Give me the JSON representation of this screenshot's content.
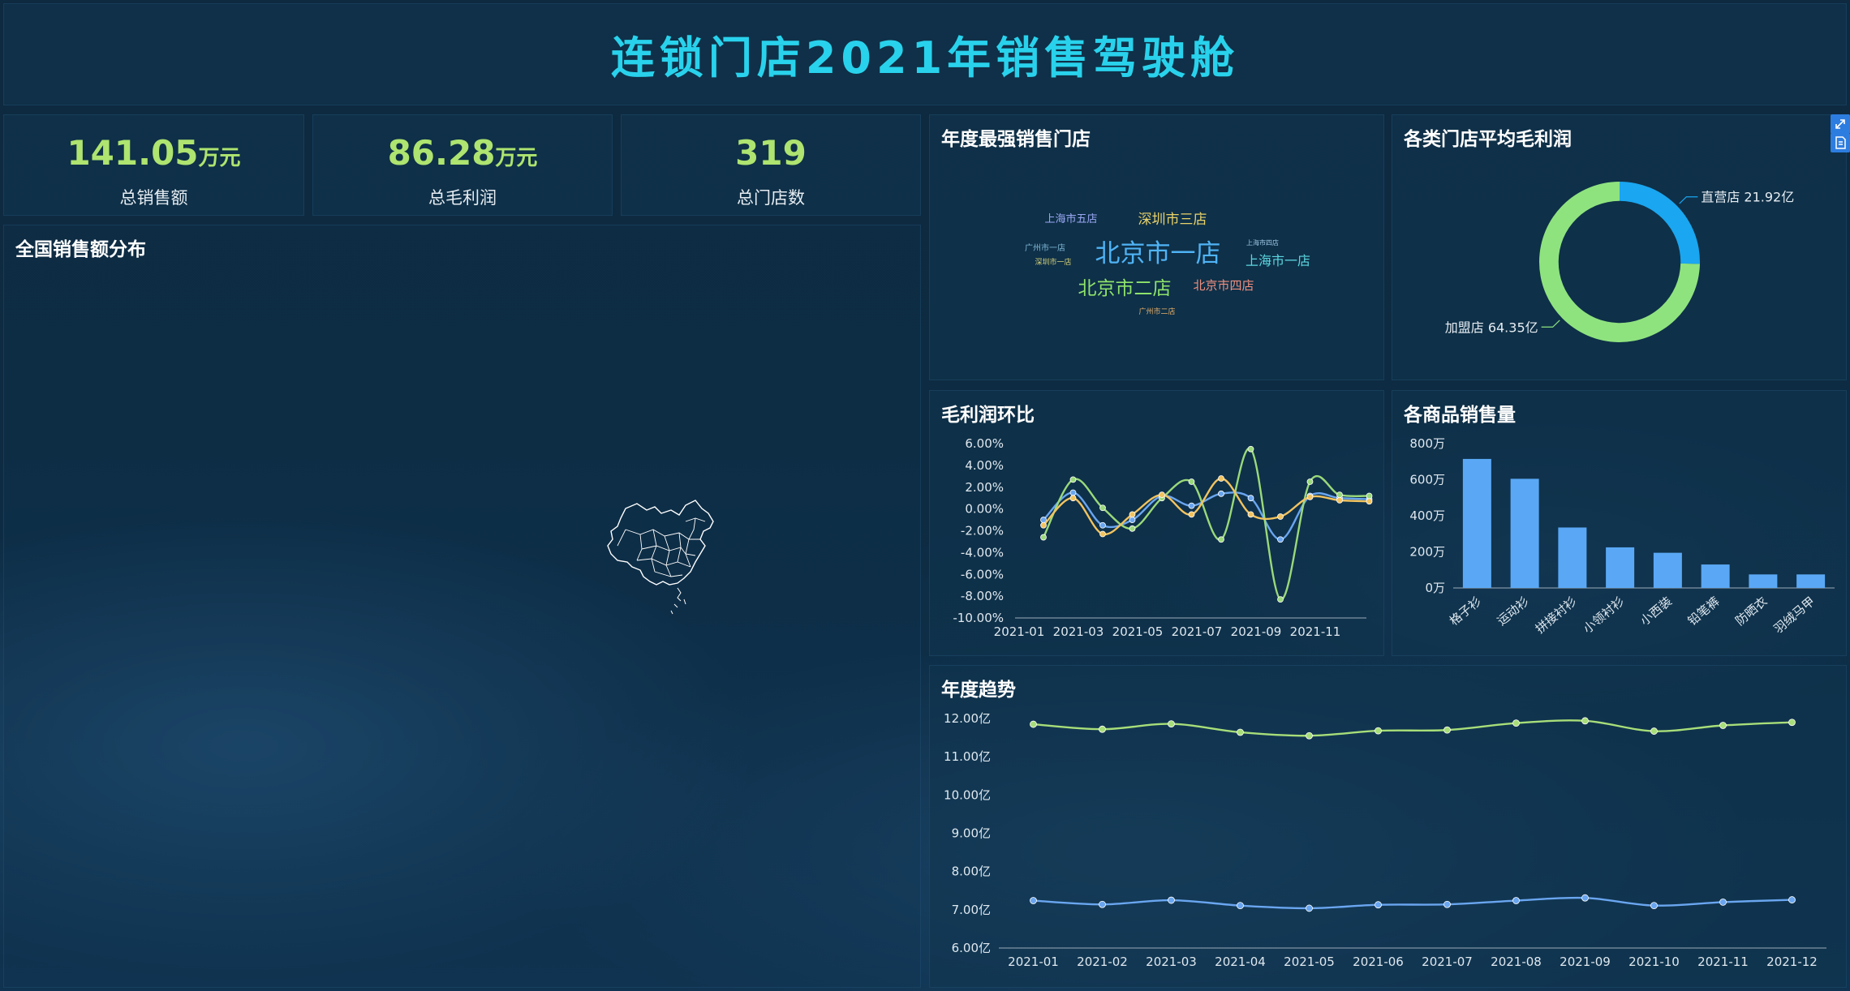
{
  "header": {
    "title": "连锁门店2021年销售驾驶舱"
  },
  "kpis": [
    {
      "value": "141.05",
      "unit": "万元",
      "label": "总销售额"
    },
    {
      "value": "86.28",
      "unit": "万元",
      "label": "总毛利润"
    },
    {
      "value": "319",
      "unit": "",
      "label": "总门店数"
    }
  ],
  "map_panel": {
    "title": "全国销售额分布"
  },
  "wordcloud_panel": {
    "title": "年度最强销售门店",
    "words": [
      {
        "text": "北京市一店",
        "color": "#4fb3f5"
      },
      {
        "text": "北京市二店",
        "color": "#8fe36b"
      },
      {
        "text": "深圳市三店",
        "color": "#e9d26a"
      },
      {
        "text": "上海市一店",
        "color": "#5cd6e0"
      },
      {
        "text": "北京市四店",
        "color": "#ef8f7f"
      },
      {
        "text": "上海市五店",
        "color": "#9aa8f5"
      },
      {
        "text": "广州市一店",
        "color": "#7fb8d8"
      },
      {
        "text": "深圳市一店",
        "color": "#d8d37a"
      },
      {
        "text": "上海市四店",
        "color": "#9ec8e8"
      },
      {
        "text": "广州市二店",
        "color": "#e8b06a"
      }
    ]
  },
  "donut_panel": {
    "title": "各类门店平均毛利润"
  },
  "line_panel": {
    "title": "毛利润环比"
  },
  "bar_panel": {
    "title": "各商品销售量"
  },
  "trend_panel": {
    "title": "年度趋势"
  },
  "chart_data": [
    {
      "type": "pie",
      "title": "各类门店平均毛利润",
      "inner_radius_ratio": 0.76,
      "slices": [
        {
          "label": "直营店 21.92亿",
          "value": 21.92,
          "color": "#1aa6f0"
        },
        {
          "label": "加盟店 64.35亿",
          "value": 64.35,
          "color": "#8fe37f"
        }
      ]
    },
    {
      "type": "line",
      "title": "毛利润环比",
      "x": [
        "2021-01",
        "2021-02",
        "2021-03",
        "2021-04",
        "2021-05",
        "2021-06",
        "2021-07",
        "2021-08",
        "2021-09",
        "2021-10",
        "2021-11",
        "2021-12"
      ],
      "xticks": [
        "2021-01",
        "2021-03",
        "2021-05",
        "2021-07",
        "2021-09",
        "2021-11"
      ],
      "yticks": [
        "6.00%",
        "4.00%",
        "2.00%",
        "0.00%",
        "-2.00%",
        "-4.00%",
        "-6.00%",
        "-8.00%",
        "-10.00%"
      ],
      "ylim": [
        -10,
        6
      ],
      "series": [
        {
          "color": "#6aa6f0",
          "values": [
            -1.0,
            1.5,
            -1.5,
            -1.0,
            1.2,
            0.3,
            1.4,
            1.0,
            -2.8,
            1.2,
            1.0,
            0.9
          ]
        },
        {
          "color": "#9ad97a",
          "values": [
            -2.6,
            2.7,
            0.1,
            -1.8,
            1.0,
            2.5,
            -2.8,
            5.5,
            -8.3,
            2.5,
            1.3,
            1.2
          ]
        },
        {
          "color": "#f2c35f",
          "values": [
            -1.5,
            1.0,
            -2.3,
            -0.5,
            1.3,
            -0.5,
            2.8,
            -0.5,
            -0.7,
            1.1,
            0.8,
            0.7
          ]
        }
      ]
    },
    {
      "type": "bar",
      "title": "各商品销售量",
      "categories": [
        "格子衫",
        "运动衫",
        "拼接衬衫",
        "小领衬衫",
        "小西装",
        "铅笔裤",
        "防晒衣",
        "羽绒马甲"
      ],
      "values": [
        715,
        605,
        335,
        225,
        195,
        130,
        75,
        75
      ],
      "yticks": [
        "800万",
        "600万",
        "400万",
        "200万",
        "0万"
      ],
      "ylim": [
        0,
        800
      ],
      "color": "#5aa8f5"
    },
    {
      "type": "line",
      "title": "年度趋势",
      "x": [
        "2021-01",
        "2021-02",
        "2021-03",
        "2021-04",
        "2021-05",
        "2021-06",
        "2021-07",
        "2021-08",
        "2021-09",
        "2021-10",
        "2021-11",
        "2021-12"
      ],
      "yticks": [
        "12.00亿",
        "11.00亿",
        "10.00亿",
        "9.00亿",
        "8.00亿",
        "7.00亿",
        "6.00亿"
      ],
      "ylim": [
        6,
        12
      ],
      "series": [
        {
          "color": "#a8de79",
          "values": [
            11.85,
            11.72,
            11.86,
            11.64,
            11.55,
            11.68,
            11.7,
            11.88,
            11.94,
            11.67,
            11.82,
            11.9
          ]
        },
        {
          "color": "#6aa6f0",
          "values": [
            7.24,
            7.14,
            7.25,
            7.11,
            7.04,
            7.13,
            7.14,
            7.24,
            7.31,
            7.11,
            7.2,
            7.26
          ]
        }
      ]
    }
  ]
}
